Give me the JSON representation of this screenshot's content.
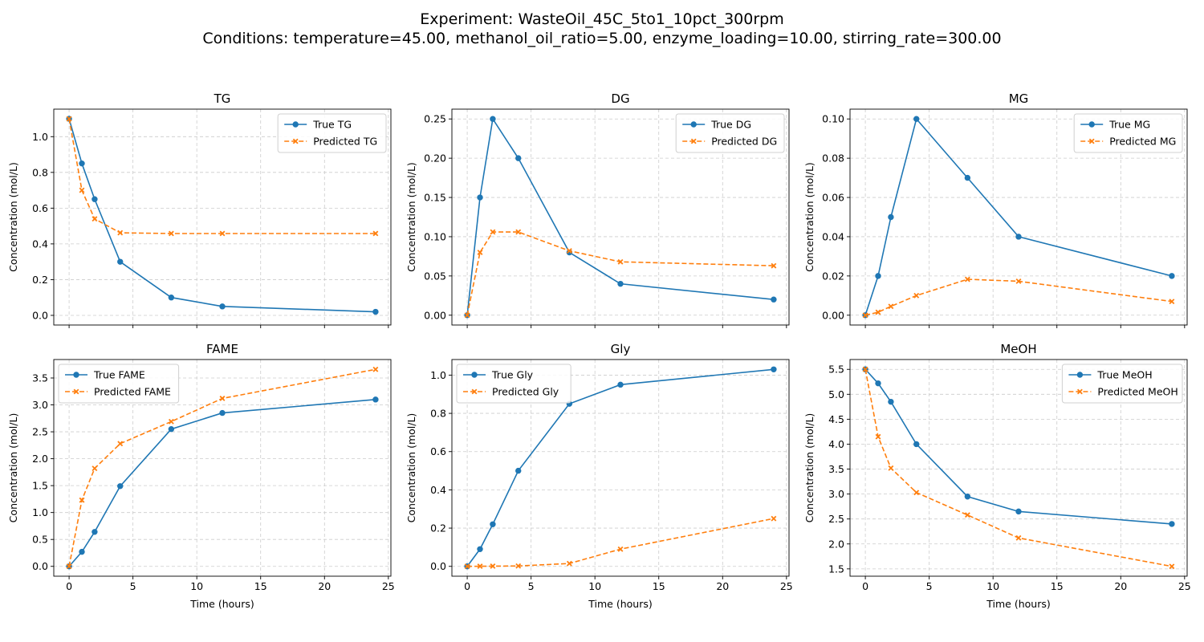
{
  "figure": {
    "title_line1": "Experiment: WasteOil_45C_5to1_10pct_300rpm",
    "title_line2": "Conditions: temperature=45.00, methanol_oil_ratio=5.00, enzyme_loading=10.00, stirring_rate=300.00"
  },
  "colors": {
    "true": "#1f77b4",
    "predicted": "#ff7f0e",
    "grid": "#cccccc"
  },
  "chart_data": [
    {
      "type": "line",
      "title": "TG",
      "xlabel": "",
      "ylabel": "Concentration (mol/L)",
      "xlim": [
        -1.2,
        25.2
      ],
      "ylim": [
        -0.054,
        1.154
      ],
      "yticks": [
        0.0,
        0.2,
        0.4,
        0.6,
        0.8,
        1.0
      ],
      "ytick_labels": [
        "0.0",
        "0.2",
        "0.4",
        "0.6",
        "0.8",
        "1.0"
      ],
      "xticks": [
        0,
        5,
        10,
        15,
        20,
        25
      ],
      "xtick_labels": [],
      "grid": true,
      "legend": "top-right",
      "series": [
        {
          "name": "True TG",
          "style": "solid-circle",
          "x": [
            0,
            1,
            2,
            4,
            8,
            12,
            24
          ],
          "y": [
            1.1,
            0.85,
            0.65,
            0.3,
            0.1,
            0.05,
            0.02
          ]
        },
        {
          "name": "Predicted TG",
          "style": "dashed-x",
          "x": [
            0,
            1,
            2,
            4,
            8,
            12,
            24
          ],
          "y": [
            1.1,
            0.7,
            0.54,
            0.462,
            0.458,
            0.458,
            0.458
          ]
        }
      ]
    },
    {
      "type": "line",
      "title": "DG",
      "xlabel": "",
      "ylabel": "Concentration (mol/L)",
      "xlim": [
        -1.2,
        25.2
      ],
      "ylim": [
        -0.0125,
        0.2625
      ],
      "yticks": [
        0.0,
        0.05,
        0.1,
        0.15,
        0.2,
        0.25
      ],
      "ytick_labels": [
        "0.00",
        "0.05",
        "0.10",
        "0.15",
        "0.20",
        "0.25"
      ],
      "xticks": [
        0,
        5,
        10,
        15,
        20,
        25
      ],
      "xtick_labels": [],
      "grid": true,
      "legend": "top-right",
      "series": [
        {
          "name": "True DG",
          "style": "solid-circle",
          "x": [
            0,
            1,
            2,
            4,
            8,
            12,
            24
          ],
          "y": [
            0,
            0.15,
            0.25,
            0.2,
            0.08,
            0.04,
            0.02
          ]
        },
        {
          "name": "Predicted DG",
          "style": "dashed-x",
          "x": [
            0,
            1,
            2,
            4,
            8,
            12,
            24
          ],
          "y": [
            0,
            0.08,
            0.106,
            0.106,
            0.082,
            0.068,
            0.063
          ]
        }
      ]
    },
    {
      "type": "line",
      "title": "MG",
      "xlabel": "",
      "ylabel": "Concentration (mol/L)",
      "xlim": [
        -1.2,
        25.2
      ],
      "ylim": [
        -0.005,
        0.105
      ],
      "yticks": [
        0.0,
        0.02,
        0.04,
        0.06,
        0.08,
        0.1
      ],
      "ytick_labels": [
        "0.00",
        "0.02",
        "0.04",
        "0.06",
        "0.08",
        "0.10"
      ],
      "xticks": [
        0,
        5,
        10,
        15,
        20,
        25
      ],
      "xtick_labels": [],
      "grid": true,
      "legend": "top-right",
      "series": [
        {
          "name": "True MG",
          "style": "solid-circle",
          "x": [
            0,
            1,
            2,
            4,
            8,
            12,
            24
          ],
          "y": [
            0,
            0.02,
            0.05,
            0.1,
            0.07,
            0.04,
            0.02
          ]
        },
        {
          "name": "Predicted MG",
          "style": "dashed-x",
          "x": [
            0,
            1,
            2,
            4,
            8,
            12,
            24
          ],
          "y": [
            0,
            0.0015,
            0.0045,
            0.01,
            0.0183,
            0.0173,
            0.007
          ]
        }
      ]
    },
    {
      "type": "line",
      "title": "FAME",
      "xlabel": "Time (hours)",
      "ylabel": "Concentration (mol/L)",
      "xlim": [
        -1.2,
        25.2
      ],
      "ylim": [
        -0.183,
        3.843
      ],
      "yticks": [
        0.0,
        0.5,
        1.0,
        1.5,
        2.0,
        2.5,
        3.0,
        3.5
      ],
      "ytick_labels": [
        "0.0",
        "0.5",
        "1.0",
        "1.5",
        "2.0",
        "2.5",
        "3.0",
        "3.5"
      ],
      "xticks": [
        0,
        5,
        10,
        15,
        20,
        25
      ],
      "xtick_labels": [
        "0",
        "5",
        "10",
        "15",
        "20",
        "25"
      ],
      "grid": true,
      "legend": "top-left",
      "series": [
        {
          "name": "True FAME",
          "style": "solid-circle",
          "x": [
            0,
            1,
            2,
            4,
            8,
            12,
            24
          ],
          "y": [
            0,
            0.27,
            0.64,
            1.49,
            2.55,
            2.85,
            3.1
          ]
        },
        {
          "name": "Predicted FAME",
          "style": "dashed-x",
          "x": [
            0,
            1,
            2,
            4,
            8,
            12,
            24
          ],
          "y": [
            0,
            1.23,
            1.82,
            2.28,
            2.69,
            3.12,
            3.66
          ]
        }
      ]
    },
    {
      "type": "line",
      "title": "Gly",
      "xlabel": "Time (hours)",
      "ylabel": "Concentration (mol/L)",
      "xlim": [
        -1.2,
        25.2
      ],
      "ylim": [
        -0.0515,
        1.0815
      ],
      "yticks": [
        0.0,
        0.2,
        0.4,
        0.6,
        0.8,
        1.0
      ],
      "ytick_labels": [
        "0.0",
        "0.2",
        "0.4",
        "0.6",
        "0.8",
        "1.0"
      ],
      "xticks": [
        0,
        5,
        10,
        15,
        20,
        25
      ],
      "xtick_labels": [
        "0",
        "5",
        "10",
        "15",
        "20",
        "25"
      ],
      "grid": true,
      "legend": "top-left",
      "series": [
        {
          "name": "True Gly",
          "style": "solid-circle",
          "x": [
            0,
            1,
            2,
            4,
            8,
            12,
            24
          ],
          "y": [
            0,
            0.09,
            0.22,
            0.5,
            0.85,
            0.95,
            1.03
          ]
        },
        {
          "name": "Predicted Gly",
          "style": "dashed-x",
          "x": [
            0,
            1,
            2,
            4,
            8,
            12,
            24
          ],
          "y": [
            0,
            0.0005,
            0.001,
            0.002,
            0.015,
            0.09,
            0.25
          ]
        }
      ]
    },
    {
      "type": "line",
      "title": "MeOH",
      "xlabel": "Time (hours)",
      "ylabel": "Concentration (mol/L)",
      "xlim": [
        -1.2,
        25.2
      ],
      "ylim": [
        1.353,
        5.697
      ],
      "yticks": [
        1.5,
        2.0,
        2.5,
        3.0,
        3.5,
        4.0,
        4.5,
        5.0,
        5.5
      ],
      "ytick_labels": [
        "1.5",
        "2.0",
        "2.5",
        "3.0",
        "3.5",
        "4.0",
        "4.5",
        "5.0",
        "5.5"
      ],
      "xticks": [
        0,
        5,
        10,
        15,
        20,
        25
      ],
      "xtick_labels": [
        "0",
        "5",
        "10",
        "15",
        "20",
        "25"
      ],
      "grid": true,
      "legend": "top-right",
      "series": [
        {
          "name": "True MeOH",
          "style": "solid-circle",
          "x": [
            0,
            1,
            2,
            4,
            8,
            12,
            24
          ],
          "y": [
            5.5,
            5.22,
            4.85,
            4.0,
            2.95,
            2.65,
            2.4
          ]
        },
        {
          "name": "Predicted MeOH",
          "style": "dashed-x",
          "x": [
            0,
            1,
            2,
            4,
            8,
            12,
            24
          ],
          "y": [
            5.5,
            4.15,
            3.52,
            3.03,
            2.58,
            2.12,
            1.55
          ]
        }
      ]
    }
  ]
}
